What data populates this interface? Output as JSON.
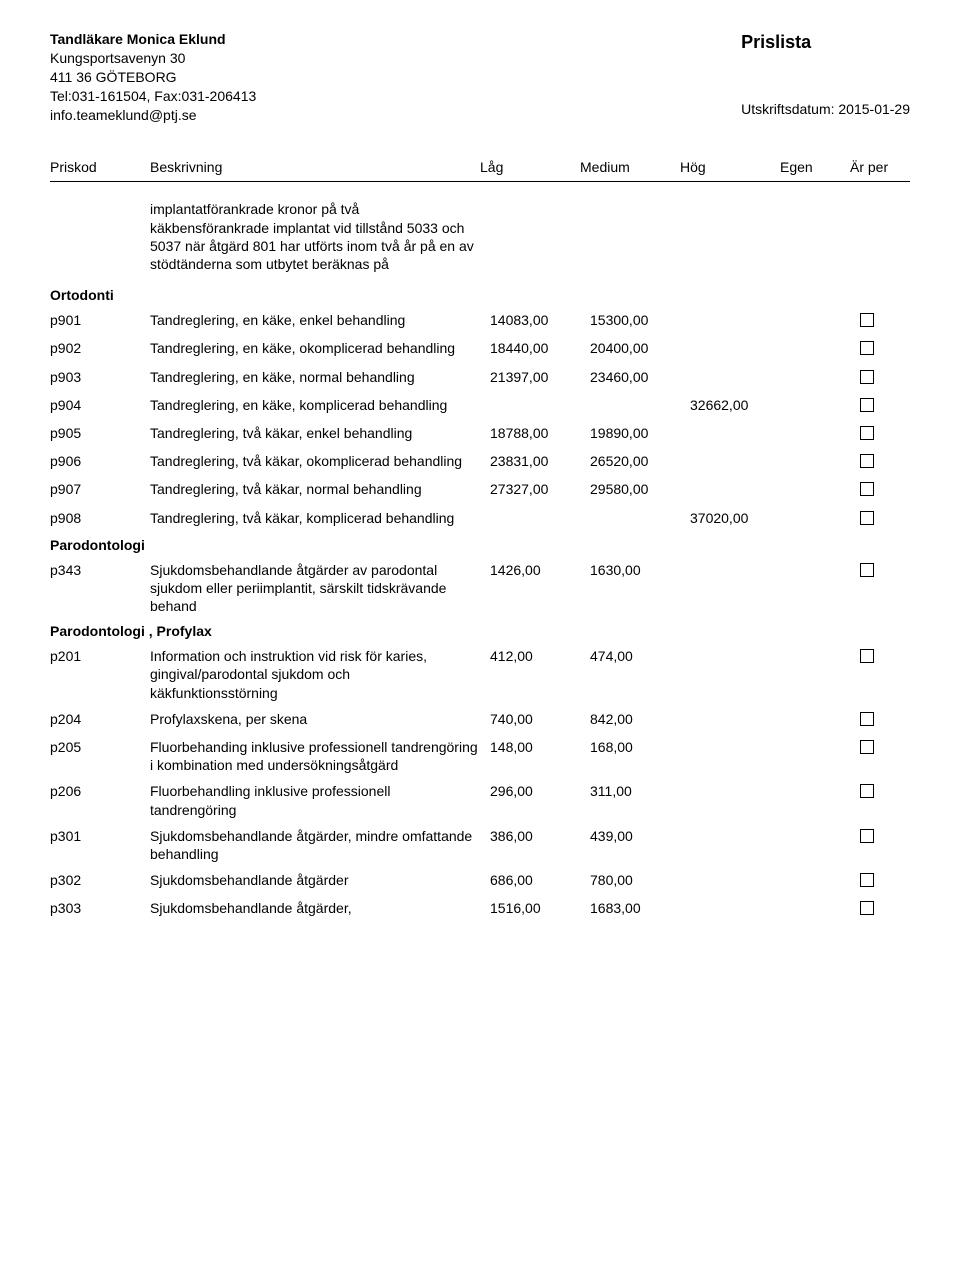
{
  "header": {
    "dentist": "Tandläkare Monica Eklund",
    "address1": "Kungsportsavenyn 30",
    "address2": "411 36 GÖTEBORG",
    "phone": "Tel:031-161504, Fax:031-206413",
    "email": "info.teameklund@ptj.se",
    "title": "Prislista",
    "print_date": "Utskriftsdatum: 2015-01-29"
  },
  "columns": {
    "priskod": "Priskod",
    "beskrivning": "Beskrivning",
    "lag": "Låg",
    "medium": "Medium",
    "hog": "Hög",
    "egen": "Egen",
    "arper": "Är per"
  },
  "intro_text": "implantatförankrade kronor på två käkbensförankrade implantat vid tillstånd 5033 och 5037 när åtgärd 801 har utförts inom två år på en av stödtänderna som utbytet beräknas på",
  "sections": [
    {
      "title": "Ortodonti",
      "rows": [
        {
          "code": "p901",
          "desc": "Tandreglering, en käke, enkel behandling",
          "lag": "14083,00",
          "medium": "15300,00",
          "hog": "",
          "egen": ""
        },
        {
          "code": "p902",
          "desc": "Tandreglering, en käke, okomplicerad behandling",
          "lag": "18440,00",
          "medium": "20400,00",
          "hog": "",
          "egen": ""
        },
        {
          "code": "p903",
          "desc": "Tandreglering, en käke, normal behandling",
          "lag": "21397,00",
          "medium": "23460,00",
          "hog": "",
          "egen": ""
        },
        {
          "code": "p904",
          "desc": "Tandreglering, en käke, komplicerad behandling",
          "lag": "",
          "medium": "",
          "hog": "32662,00",
          "egen": ""
        },
        {
          "code": "p905",
          "desc": "Tandreglering, två käkar, enkel behandling",
          "lag": "18788,00",
          "medium": "19890,00",
          "hog": "",
          "egen": ""
        },
        {
          "code": "p906",
          "desc": "Tandreglering, två käkar, okomplicerad behandling",
          "lag": "23831,00",
          "medium": "26520,00",
          "hog": "",
          "egen": ""
        },
        {
          "code": "p907",
          "desc": "Tandreglering, två käkar, normal behandling",
          "lag": "27327,00",
          "medium": "29580,00",
          "hog": "",
          "egen": ""
        },
        {
          "code": "p908",
          "desc": "Tandreglering, två käkar, komplicerad behandling",
          "lag": "",
          "medium": "",
          "hog": "37020,00",
          "egen": ""
        }
      ]
    },
    {
      "title": "Parodontologi",
      "rows": [
        {
          "code": "p343",
          "desc": "Sjukdomsbehandlande åtgärder av parodontal sjukdom eller periimplantit, särskilt tidskrävande behand",
          "lag": "1426,00",
          "medium": "1630,00",
          "hog": "",
          "egen": ""
        }
      ]
    },
    {
      "title": "Parodontologi , Profylax",
      "rows": [
        {
          "code": "p201",
          "desc": "Information och instruktion vid risk för karies, gingival/parodontal sjukdom och käkfunktionsstörning",
          "lag": "412,00",
          "medium": "474,00",
          "hog": "",
          "egen": ""
        },
        {
          "code": "p204",
          "desc": "Profylaxskena, per skena",
          "lag": "740,00",
          "medium": "842,00",
          "hog": "",
          "egen": ""
        },
        {
          "code": "p205",
          "desc": "Fluorbehanding inklusive professionell tandrengöring i kombination med undersökningsåtgärd",
          "lag": "148,00",
          "medium": "168,00",
          "hog": "",
          "egen": ""
        },
        {
          "code": "p206",
          "desc": "Fluorbehandling inklusive professionell tandrengöring",
          "lag": "296,00",
          "medium": "311,00",
          "hog": "",
          "egen": ""
        },
        {
          "code": "p301",
          "desc": "Sjukdomsbehandlande åtgärder, mindre omfattande behandling",
          "lag": "386,00",
          "medium": "439,00",
          "hog": "",
          "egen": ""
        },
        {
          "code": "p302",
          "desc": "Sjukdomsbehandlande åtgärder",
          "lag": "686,00",
          "medium": "780,00",
          "hog": "",
          "egen": ""
        },
        {
          "code": "p303",
          "desc": "Sjukdomsbehandlande åtgärder,",
          "lag": "1516,00",
          "medium": "1683,00",
          "hog": "",
          "egen": ""
        }
      ]
    }
  ]
}
